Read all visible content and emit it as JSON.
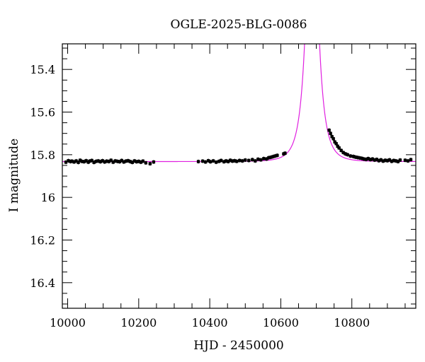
{
  "chart_data": {
    "type": "scatter",
    "title": "OGLE-2025-BLG-0086",
    "xlabel": "HJD - 2450000",
    "ylabel": "I magnitude",
    "xlim": [
      9985,
      10980
    ],
    "ylim": [
      16.52,
      15.28
    ],
    "y_inverted": true,
    "grid": false,
    "legend": "none",
    "x_ticks_major": [
      10000,
      10200,
      10400,
      10600,
      10800
    ],
    "y_ticks_major": [
      15.4,
      15.6,
      15.8,
      16,
      16.2,
      16.4
    ],
    "x_tick_labels": [
      "10000",
      "10200",
      "10400",
      "10600",
      "10800"
    ],
    "y_tick_labels": [
      "15.4",
      "15.6",
      "15.8",
      "16",
      "16.2",
      "16.4"
    ],
    "series": [
      {
        "kind": "points_with_errorbars",
        "color": "#000000",
        "error": 0.009,
        "x": [
          9995,
          10002,
          10008,
          10012,
          10018,
          10024,
          10030,
          10035,
          10040,
          10046,
          10052,
          10058,
          10062,
          10068,
          10074,
          10080,
          10086,
          10092,
          10098,
          10104,
          10110,
          10116,
          10122,
          10128,
          10134,
          10140,
          10146,
          10152,
          10158,
          10164,
          10170,
          10176,
          10182,
          10188,
          10194,
          10200,
          10206,
          10212,
          10220,
          10232,
          10242,
          10368,
          10380,
          10388,
          10396,
          10402,
          10410,
          10418,
          10426,
          10432,
          10440,
          10446,
          10452,
          10458,
          10464,
          10470,
          10476,
          10484,
          10492,
          10500,
          10510,
          10520,
          10528,
          10536,
          10544,
          10552,
          10560,
          10566,
          10572,
          10578,
          10584,
          10590,
          10608,
          10612,
          10736,
          10740,
          10744,
          10748,
          10752,
          10756,
          10760,
          10764,
          10770,
          10776,
          10782,
          10788,
          10796,
          10804,
          10810,
          10816,
          10822,
          10828,
          10834,
          10840,
          10846,
          10852,
          10858,
          10864,
          10870,
          10876,
          10882,
          10888,
          10894,
          10900,
          10906,
          10912,
          10918,
          10924,
          10930,
          10936,
          10950,
          10958,
          10966
        ],
        "y": [
          15.835,
          15.828,
          15.832,
          15.83,
          15.834,
          15.829,
          15.836,
          15.826,
          15.831,
          15.833,
          15.828,
          15.835,
          15.83,
          15.827,
          15.836,
          15.831,
          15.829,
          15.833,
          15.828,
          15.834,
          15.83,
          15.832,
          15.826,
          15.835,
          15.829,
          15.831,
          15.833,
          15.827,
          15.834,
          15.83,
          15.828,
          15.832,
          15.836,
          15.829,
          15.833,
          15.831,
          15.835,
          15.83,
          15.838,
          15.842,
          15.834,
          15.832,
          15.83,
          15.834,
          15.828,
          15.833,
          15.829,
          15.835,
          15.831,
          15.827,
          15.833,
          15.829,
          15.832,
          15.826,
          15.83,
          15.828,
          15.831,
          15.827,
          15.829,
          15.825,
          15.827,
          15.823,
          15.829,
          15.821,
          15.824,
          15.818,
          15.82,
          15.814,
          15.812,
          15.809,
          15.806,
          15.803,
          15.796,
          15.793,
          15.685,
          15.7,
          15.715,
          15.725,
          15.74,
          15.748,
          15.76,
          15.768,
          15.78,
          15.79,
          15.796,
          15.8,
          15.806,
          15.808,
          15.811,
          15.813,
          15.815,
          15.817,
          15.82,
          15.822,
          15.818,
          15.823,
          15.82,
          15.825,
          15.822,
          15.828,
          15.824,
          15.83,
          15.826,
          15.828,
          15.824,
          15.831,
          15.827,
          15.829,
          15.832,
          15.825,
          15.826,
          15.829,
          15.823
        ]
      },
      {
        "kind": "model_curve",
        "color": "#e020e0",
        "t0": 10688,
        "tE": 30,
        "u0": 0.08,
        "i_base": 15.832,
        "x_range": [
          9985,
          10980
        ]
      }
    ]
  }
}
